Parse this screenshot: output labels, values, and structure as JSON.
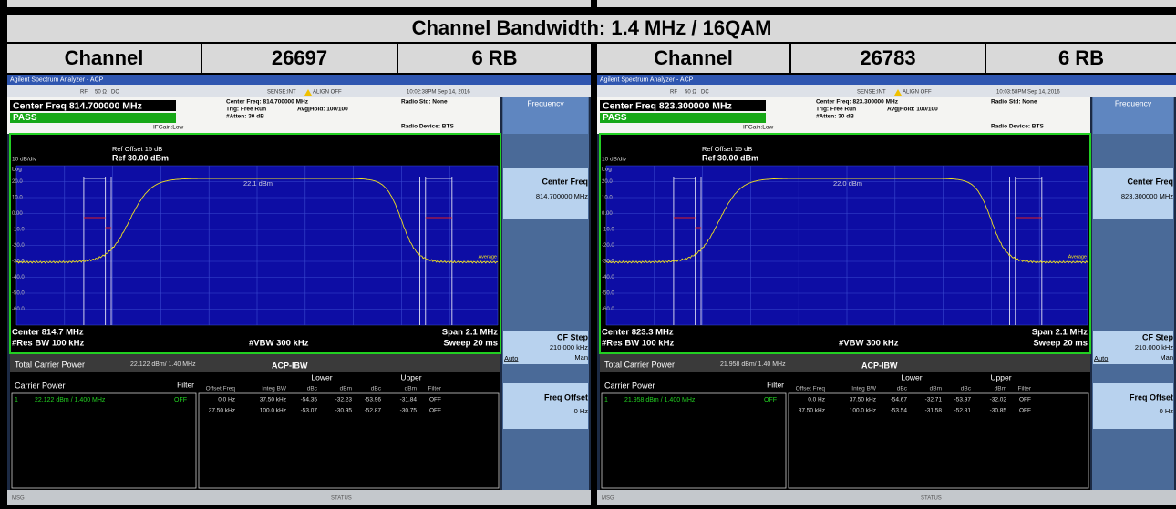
{
  "title": "Channel Bandwidth: 1.4 MHz / 16QAM",
  "header": [
    "Channel",
    "26697",
    "6 RB",
    "Channel",
    "26783",
    "6 RB"
  ],
  "screens": [
    {
      "app_title": "Agilent Spectrum Analyzer - ACP",
      "status": [
        "RF",
        "50 Ω",
        "DC",
        "SENSE:INT",
        "ALIGN OFF",
        "10:02:38PM Sep 14, 2016"
      ],
      "center_freq": "Center Freq 814.700000 MHz",
      "pass": "PASS",
      "ifgain": "IFGain:Low",
      "settings": [
        "Center Freq: 814.700000 MHz",
        "Trig: Free Run",
        "#Atten: 30 dB"
      ],
      "avg_hold": "Avg|Hold: 100/100",
      "radio_std": "Radio Std: None",
      "radio_device": "Radio Device: BTS",
      "ref_offset": "Ref Offset 15 dB",
      "scale": "10 dB/div",
      "ref_level": "Ref 30.00 dBm",
      "log": "Log",
      "y_labels": [
        "20.0",
        "10.0",
        "0.00",
        "-10.0",
        "-20.0",
        "-30.0",
        "-40.0",
        "-50.0",
        "-60.0"
      ],
      "carrier_level": "22.1 dBm",
      "average": "Average",
      "center": "Center 814.7 MHz",
      "res_bw": "#Res BW 100 kHz",
      "vbw": "#VBW 300 kHz",
      "span": "Span 2.1 MHz",
      "sweep": "Sweep 20 ms",
      "menu": {
        "title": "Frequency",
        "center_freq": "Center Freq",
        "center_freq_value": "814.700000 MHz",
        "cf_step": "CF Step",
        "cf_step_value": "210.000 kHz",
        "auto": "Auto",
        "man": "Man",
        "freq_offset": "Freq Offset",
        "freq_offset_value": "0 Hz"
      },
      "results": {
        "total_label": "Total Carrier Power",
        "total_value": "22.122 dBm/ 1.40 MHz",
        "mode": "ACP-IBW",
        "carrier_label": "Carrier Power",
        "filter_label": "Filter",
        "carrier_row": [
          "1",
          "22.122 dBm / 1.400 MHz",
          "OFF"
        ],
        "lower": "Lower",
        "upper": "Upper",
        "columns": [
          "Offset Freq",
          "Integ BW",
          "dBc",
          "dBm",
          "dBc",
          "dBm",
          "Filter"
        ],
        "rows": [
          [
            "0.0 Hz",
            "37.50 kHz",
            "-54.35",
            "-32.23",
            "-53.96",
            "-31.84",
            "OFF"
          ],
          [
            "37.50 kHz",
            "100.0 kHz",
            "-53.07",
            "-30.95",
            "-52.87",
            "-30.75",
            "OFF"
          ]
        ]
      },
      "msg": "MSG",
      "status_label": "STATUS"
    },
    {
      "app_title": "Agilent Spectrum Analyzer - ACP",
      "status": [
        "RF",
        "50 Ω",
        "DC",
        "SENSE:INT",
        "ALIGN OFF",
        "10:03:58PM Sep 14, 2016"
      ],
      "center_freq": "Center Freq 823.300000 MHz",
      "pass": "PASS",
      "ifgain": "IFGain:Low",
      "settings": [
        "Center Freq: 823.300000 MHz",
        "Trig: Free Run",
        "#Atten: 30 dB"
      ],
      "avg_hold": "Avg|Hold: 100/100",
      "radio_std": "Radio Std: None",
      "radio_device": "Radio Device: BTS",
      "ref_offset": "Ref Offset 15 dB",
      "scale": "10 dB/div",
      "ref_level": "Ref 30.00 dBm",
      "log": "Log",
      "y_labels": [
        "20.0",
        "10.0",
        "0.00",
        "-10.0",
        "-20.0",
        "-30.0",
        "-40.0",
        "-50.0",
        "-60.0"
      ],
      "carrier_level": "22.0 dBm",
      "average": "Average",
      "center": "Center 823.3 MHz",
      "res_bw": "#Res BW 100 kHz",
      "vbw": "#VBW 300 kHz",
      "span": "Span 2.1 MHz",
      "sweep": "Sweep 20 ms",
      "menu": {
        "title": "Frequency",
        "center_freq": "Center Freq",
        "center_freq_value": "823.300000 MHz",
        "cf_step": "CF Step",
        "cf_step_value": "210.000 kHz",
        "auto": "Auto",
        "man": "Man",
        "freq_offset": "Freq Offset",
        "freq_offset_value": "0 Hz"
      },
      "results": {
        "total_label": "Total Carrier Power",
        "total_value": "21.958 dBm/ 1.40 MHz",
        "mode": "ACP-IBW",
        "carrier_label": "Carrier Power",
        "filter_label": "Filter",
        "carrier_row": [
          "1",
          "21.958 dBm / 1.400 MHz",
          "OFF"
        ],
        "lower": "Lower",
        "upper": "Upper",
        "columns": [
          "Offset Freq",
          "Integ BW",
          "dBc",
          "dBm",
          "dBc",
          "dBm",
          "Filter"
        ],
        "rows": [
          [
            "0.0 Hz",
            "37.50 kHz",
            "-54.67",
            "-32.71",
            "-53.97",
            "-32.02",
            "OFF"
          ],
          [
            "37.50 kHz",
            "100.0 kHz",
            "-53.54",
            "-31.58",
            "-52.81",
            "-30.85",
            "OFF"
          ]
        ]
      },
      "msg": "MSG",
      "status_label": "STATUS"
    }
  ]
}
